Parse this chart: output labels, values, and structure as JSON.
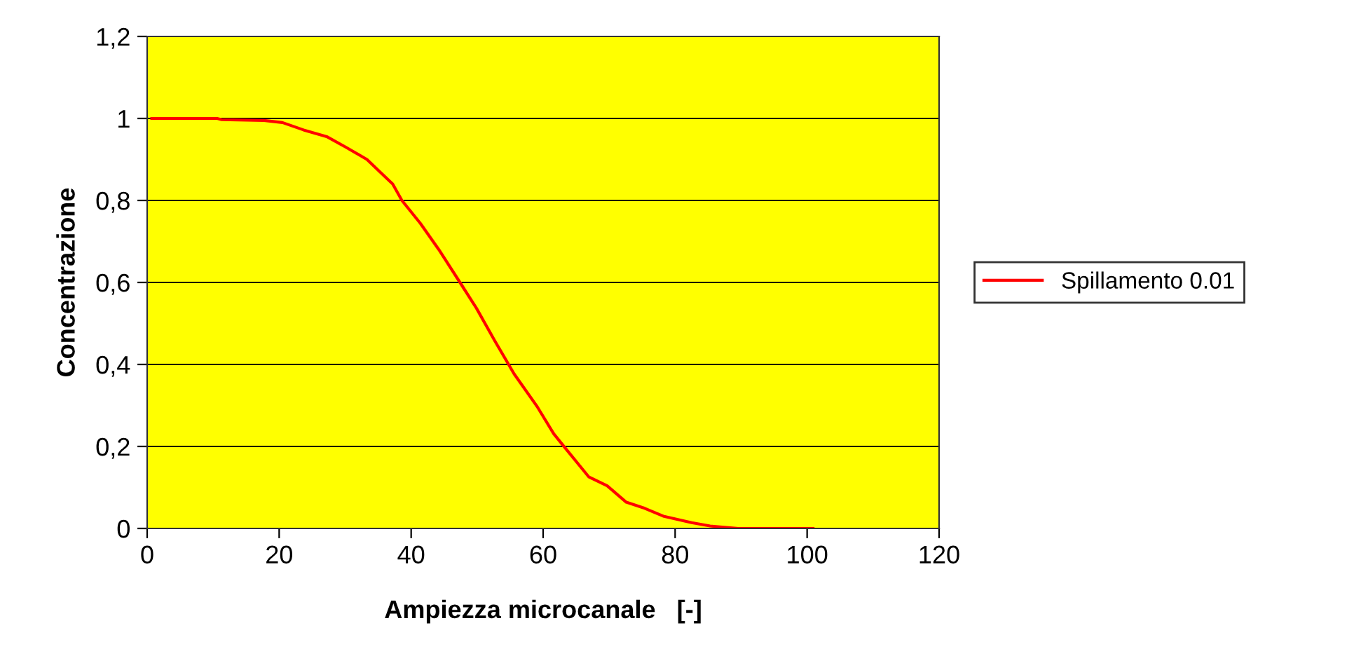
{
  "chart_data": {
    "type": "line",
    "xlabel": "Ampiezza microcanale   [-]",
    "ylabel": "Concentrazione",
    "x": [
      0.7,
      10.6,
      11.3,
      17.7,
      20.5,
      23.7,
      27.3,
      30.1,
      33.3,
      37.2,
      38.6,
      41.4,
      44.2,
      47.4,
      49.9,
      52.7,
      55.6,
      59.1,
      61.6,
      63.4,
      66.9,
      69.7,
      72.6,
      75.4,
      78.2,
      82.5,
      85.3,
      89.6,
      100.9
    ],
    "series": [
      {
        "name": "Spillamento 0.01",
        "color": "#ff0000",
        "values": [
          1.0,
          1.0,
          0.997,
          0.995,
          0.99,
          0.972,
          0.955,
          0.93,
          0.9,
          0.84,
          0.8,
          0.744,
          0.68,
          0.6,
          0.537,
          0.457,
          0.377,
          0.297,
          0.231,
          0.195,
          0.126,
          0.104,
          0.064,
          0.049,
          0.03,
          0.014,
          0.006,
          0.0,
          0.0
        ]
      }
    ],
    "xlim": [
      0,
      120
    ],
    "xticks": [
      0,
      20,
      40,
      60,
      80,
      100,
      120
    ],
    "ylim": [
      0,
      1.2
    ],
    "yticks": [
      {
        "value": 0,
        "label": "0"
      },
      {
        "value": 0.2,
        "label": "0,2"
      },
      {
        "value": 0.4,
        "label": "0,4"
      },
      {
        "value": 0.6,
        "label": "0,6"
      },
      {
        "value": 0.8,
        "label": "0,8"
      },
      {
        "value": 1,
        "label": "1"
      },
      {
        "value": 1.2,
        "label": "1,2"
      }
    ],
    "grid": "y",
    "legend": "right",
    "marker": "none",
    "line_style": "solid"
  }
}
